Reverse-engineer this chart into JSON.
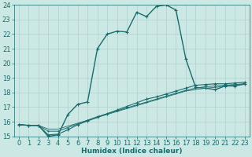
{
  "background_color": "#cce8e5",
  "grid_color": "#b0d0ce",
  "line_color": "#1a6b6b",
  "xlim": [
    -0.5,
    23.5
  ],
  "ylim": [
    15,
    24
  ],
  "xlabel": "Humidex (Indice chaleur)",
  "xlabel_fontsize": 6.5,
  "xticks": [
    0,
    1,
    2,
    3,
    4,
    5,
    6,
    7,
    8,
    9,
    10,
    11,
    12,
    13,
    14,
    15,
    16,
    17,
    18,
    19,
    20,
    21,
    22,
    23
  ],
  "yticks": [
    15,
    16,
    17,
    18,
    19,
    20,
    21,
    22,
    23,
    24
  ],
  "tick_fontsize": 6,
  "series": [
    {
      "x": [
        0,
        1,
        2,
        3,
        4,
        5,
        6,
        7,
        8,
        9,
        10,
        11,
        12,
        13,
        14,
        15,
        16,
        17,
        18,
        19,
        20,
        21,
        22,
        23
      ],
      "y": [
        15.8,
        15.75,
        15.75,
        15.0,
        15.1,
        16.5,
        17.2,
        17.35,
        21.0,
        22.0,
        22.2,
        22.15,
        23.5,
        23.2,
        23.9,
        24.0,
        23.65,
        20.3,
        18.35,
        18.3,
        18.2,
        18.45,
        18.45,
        18.6
      ],
      "marker": "+",
      "markersize": 3.5,
      "linewidth": 1.0,
      "linestyle": "-"
    },
    {
      "x": [
        0,
        1,
        2,
        3,
        4,
        5,
        6,
        7,
        8,
        9,
        10,
        11,
        12,
        13,
        14,
        15,
        16,
        17,
        18,
        19,
        20,
        21,
        22,
        23
      ],
      "y": [
        15.8,
        15.75,
        15.75,
        15.1,
        15.15,
        15.45,
        15.8,
        16.05,
        16.3,
        16.55,
        16.8,
        17.05,
        17.3,
        17.55,
        17.7,
        17.9,
        18.1,
        18.3,
        18.5,
        18.55,
        18.6,
        18.6,
        18.65,
        18.7
      ],
      "marker": "+",
      "markersize": 2.5,
      "linewidth": 0.8,
      "linestyle": "-"
    },
    {
      "x": [
        0,
        1,
        2,
        3,
        4,
        5,
        6,
        7,
        8,
        9,
        10,
        11,
        12,
        13,
        14,
        15,
        16,
        17,
        18,
        19,
        20,
        21,
        22,
        23
      ],
      "y": [
        15.8,
        15.75,
        15.75,
        15.35,
        15.35,
        15.6,
        15.85,
        16.1,
        16.35,
        16.55,
        16.75,
        16.95,
        17.15,
        17.35,
        17.55,
        17.75,
        17.95,
        18.15,
        18.3,
        18.4,
        18.45,
        18.5,
        18.55,
        18.6
      ],
      "marker": "+",
      "markersize": 2.0,
      "linewidth": 0.7,
      "linestyle": "-"
    },
    {
      "x": [
        0,
        1,
        2,
        3,
        4,
        5,
        6,
        7,
        8,
        9,
        10,
        11,
        12,
        13,
        14,
        15,
        16,
        17,
        18,
        19,
        20,
        21,
        22,
        23
      ],
      "y": [
        15.8,
        15.75,
        15.75,
        15.5,
        15.5,
        15.7,
        15.9,
        16.1,
        16.3,
        16.5,
        16.7,
        16.9,
        17.1,
        17.3,
        17.5,
        17.7,
        17.9,
        18.1,
        18.2,
        18.3,
        18.35,
        18.45,
        18.5,
        18.55
      ],
      "marker": null,
      "markersize": 0,
      "linewidth": 0.6,
      "linestyle": "-"
    }
  ]
}
